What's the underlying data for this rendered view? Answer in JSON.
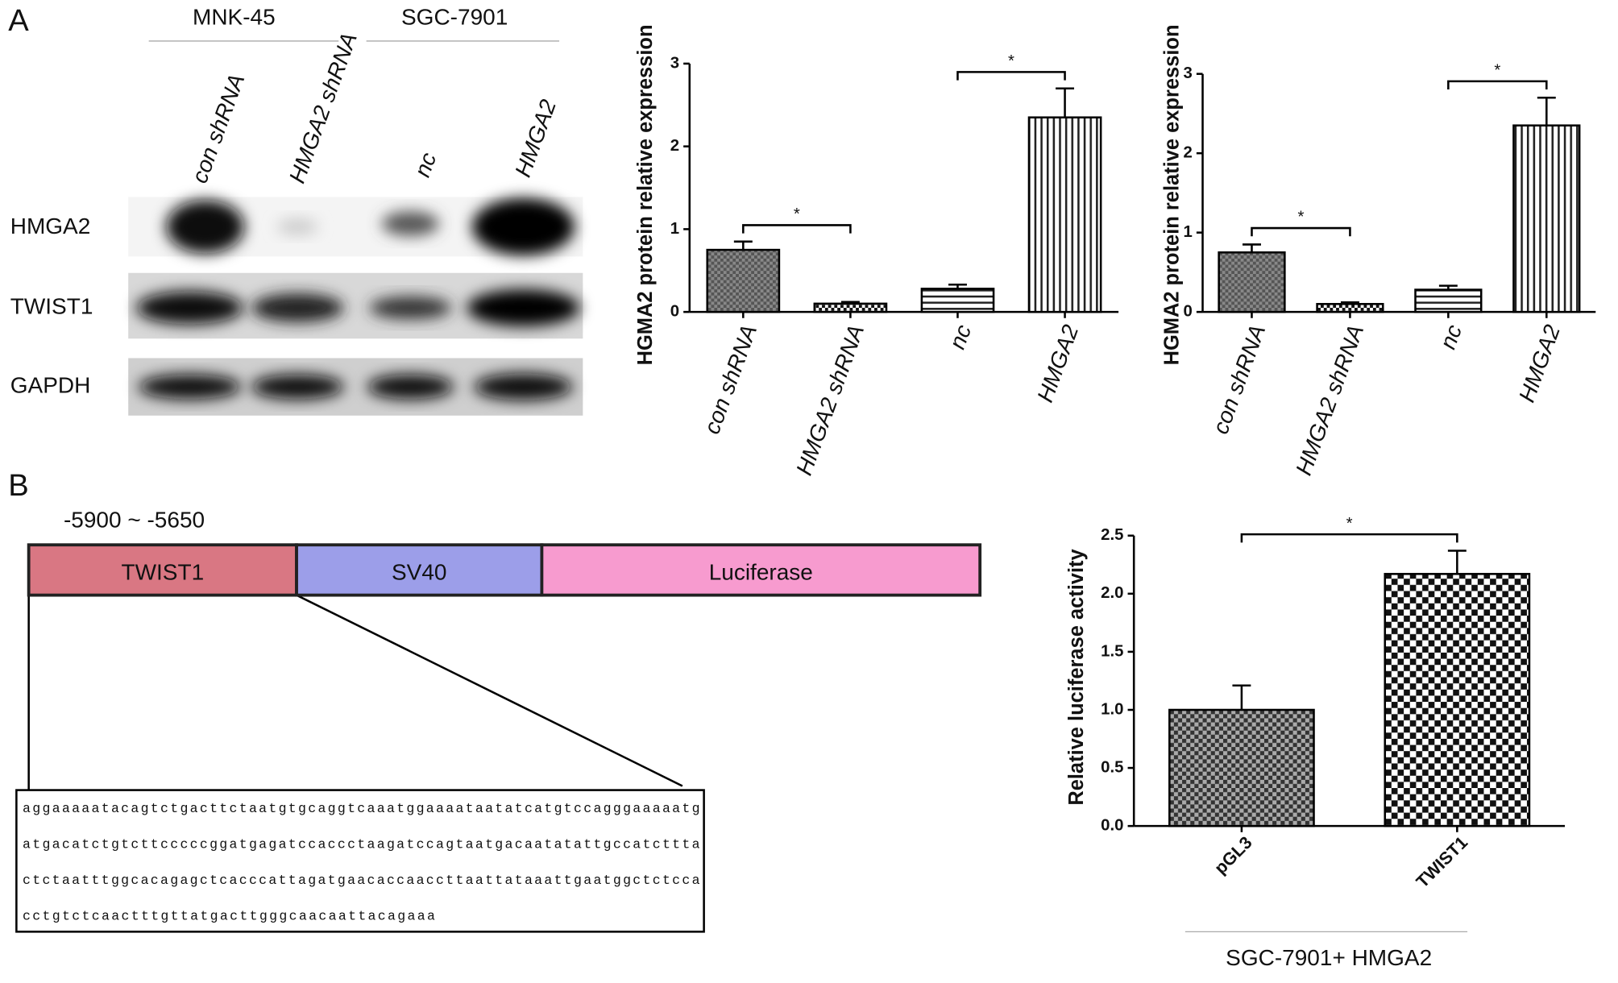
{
  "panels": {
    "a": "A",
    "b": "B"
  },
  "blot": {
    "groups": [
      "MNK-45",
      "SGC-7901"
    ],
    "lanes": [
      "con shRNA",
      "HMGA2 shRNA",
      "nc",
      "HMGA2"
    ],
    "rows": [
      "HMGA2",
      "TWIST1",
      "GAPDH"
    ]
  },
  "construct": {
    "range": "-5900 ~ -5650",
    "boxes": [
      "TWIST1",
      "SV40",
      "Luciferase"
    ],
    "box_colors": [
      "#d97783",
      "#9c9ee9",
      "#f79bcf"
    ],
    "sequence": [
      "aggaaaaatacagtctgacttctaatgtgcaggtcaaatggaaaataatatcatgtccagggaaaaatg",
      "atgacatctgtcttcccccggatgagatccaccctaagatccagtaatgacaatatattgccatcttta",
      "ctctaatttggcacagagctcacccattagatgaacaccaaccttaattataaattgaatggctctcca",
      "cctgtctcaactttgttatgacttgggcaacaattacagaaa"
    ]
  },
  "chart_data": [
    {
      "type": "bar",
      "y_label": "HGMA2 protein relative expression",
      "categories": [
        "con shRNA",
        "HMGA2 shRNA",
        "nc",
        "HMGA2"
      ],
      "values": [
        0.75,
        0.1,
        0.28,
        2.35
      ],
      "errors": [
        0.1,
        0.02,
        0.05,
        0.35
      ],
      "color": "#000000",
      "ylim": [
        0,
        3
      ],
      "yticks": [
        0,
        1,
        2,
        3
      ],
      "annotations": [
        "*",
        "*"
      ]
    },
    {
      "type": "bar",
      "y_label": "HGMA2 protein relative expression",
      "categories": [
        "con shRNA",
        "HMGA2 shRNA",
        "nc",
        "HMGA2"
      ],
      "values": [
        0.75,
        0.1,
        0.28,
        2.35
      ],
      "errors": [
        0.1,
        0.02,
        0.05,
        0.35
      ],
      "color": "#000000",
      "ylim": [
        0,
        3
      ],
      "yticks": [
        0,
        1,
        2,
        3
      ],
      "annotations": [
        "*",
        "*"
      ]
    },
    {
      "type": "bar",
      "y_label": "Relative luciferase activity",
      "x_label": "SGC-7901+ HMGA2",
      "categories": [
        "pGL3",
        "TWIST1"
      ],
      "values": [
        1.0,
        2.17
      ],
      "errors": [
        0.21,
        0.2
      ],
      "color": "#000000",
      "ylim": [
        0,
        2.5
      ],
      "yticks": [
        {
          "value": 0,
          "label": "0.0"
        },
        0.5,
        {
          "value": 1,
          "label": "1.0"
        },
        1.5,
        {
          "value": 2,
          "label": "2.0"
        },
        2.5
      ],
      "annotations": [
        "*"
      ]
    }
  ]
}
